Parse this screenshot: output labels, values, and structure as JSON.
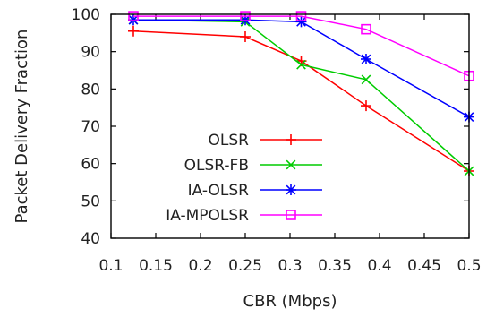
{
  "chart_data": {
    "type": "line",
    "xlabel": "CBR (Mbps)",
    "ylabel": "Packet Delivery Fraction",
    "xlim": [
      0.1,
      0.5
    ],
    "ylim": [
      40,
      100
    ],
    "xticks": [
      "0.1",
      "0.15",
      "0.2",
      "0.25",
      "0.3",
      "0.35",
      "0.4",
      "0.45",
      "0.5"
    ],
    "yticks": [
      "40",
      "50",
      "60",
      "70",
      "80",
      "90",
      "100"
    ],
    "legend_position": "bottom-center",
    "series": [
      {
        "name": "OLSR",
        "color": "#ff0000",
        "marker": "plus",
        "x": [
          0.125,
          0.25,
          0.3125,
          0.385,
          0.5
        ],
        "y": [
          95.5,
          94,
          87.5,
          75.5,
          58
        ]
      },
      {
        "name": "OLSR-FB",
        "color": "#00cc00",
        "marker": "x",
        "x": [
          0.125,
          0.25,
          0.3125,
          0.385,
          0.5
        ],
        "y": [
          98.5,
          98,
          86.5,
          82.5,
          58
        ]
      },
      {
        "name": "IA-OLSR",
        "color": "#0000ff",
        "marker": "star",
        "x": [
          0.125,
          0.25,
          0.3125,
          0.385,
          0.5
        ],
        "y": [
          98.5,
          98.5,
          98,
          88,
          72.5
        ]
      },
      {
        "name": "IA-MPOLSR",
        "color": "#ff00ff",
        "marker": "square",
        "x": [
          0.125,
          0.25,
          0.3125,
          0.385,
          0.5
        ],
        "y": [
          99.5,
          99.5,
          99.5,
          96,
          83.5
        ]
      }
    ]
  }
}
